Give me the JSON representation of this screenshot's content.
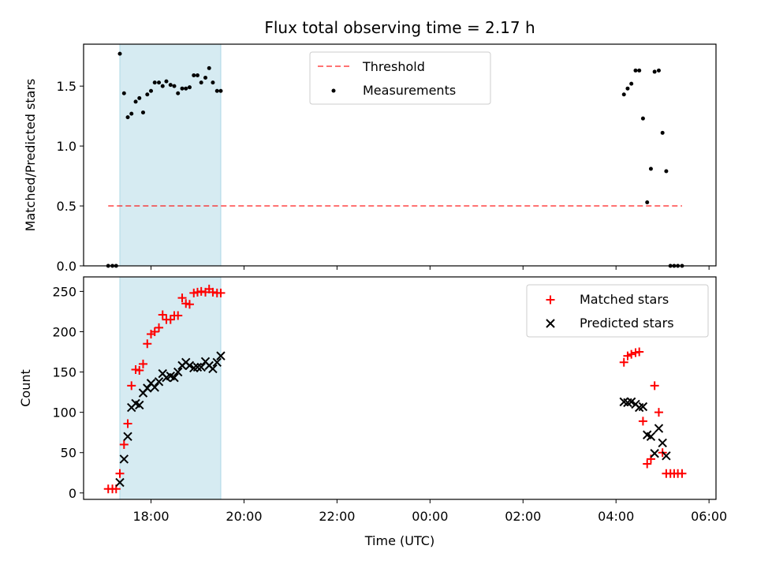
{
  "title": "Flux total observing time = 2.17 h",
  "colors": {
    "shade": "#add8e6",
    "threshold": "#ff0000",
    "measurements": "#000000",
    "matched": "#ff0000",
    "predicted": "#000000"
  },
  "chart_data": [
    {
      "type": "scatter",
      "ylabel": "Matched/Predicted stars",
      "ylim": [
        0,
        1.85
      ],
      "yticks": [
        "0.0",
        "0.5",
        "1.0",
        "1.5"
      ],
      "ytick_values": [
        0,
        0.5,
        1.0,
        1.5
      ],
      "xlim": [
        16.55,
        30.15
      ],
      "shaded_interval": [
        17.33,
        19.5
      ],
      "legend": {
        "placement": "top-center",
        "entries": [
          "Threshold",
          "Measurements"
        ]
      },
      "threshold": {
        "name": "Threshold",
        "y": 0.5,
        "x": [
          17.08,
          29.42
        ]
      },
      "series": [
        {
          "name": "Measurements",
          "x": [
            17.08,
            17.17,
            17.25,
            17.33,
            17.42,
            17.5,
            17.58,
            17.67,
            17.75,
            17.83,
            17.92,
            18.0,
            18.08,
            18.17,
            18.25,
            18.33,
            18.42,
            18.5,
            18.58,
            18.67,
            18.75,
            18.83,
            18.92,
            19.0,
            19.08,
            19.17,
            19.25,
            19.33,
            19.42,
            19.5,
            28.17,
            28.25,
            28.33,
            28.42,
            28.5,
            28.58,
            28.67,
            28.75,
            28.83,
            28.92,
            29.0,
            29.08,
            29.17,
            29.25,
            29.33,
            29.42
          ],
          "y": [
            0,
            0,
            0,
            1.77,
            1.44,
            1.24,
            1.27,
            1.37,
            1.4,
            1.28,
            1.43,
            1.46,
            1.53,
            1.53,
            1.5,
            1.54,
            1.51,
            1.5,
            1.44,
            1.48,
            1.48,
            1.49,
            1.59,
            1.59,
            1.53,
            1.57,
            1.65,
            1.53,
            1.46,
            1.46,
            1.43,
            1.48,
            1.52,
            1.63,
            1.63,
            1.23,
            0.53,
            0.81,
            1.62,
            1.63,
            1.11,
            0.79,
            0,
            0,
            0,
            0
          ]
        }
      ]
    },
    {
      "type": "scatter",
      "xlabel": "Time (UTC)",
      "ylabel": "Count",
      "ylim": [
        -8,
        268
      ],
      "yticks": [
        "0",
        "50",
        "100",
        "150",
        "200",
        "250"
      ],
      "ytick_values": [
        0,
        50,
        100,
        150,
        200,
        250
      ],
      "xlim": [
        16.55,
        30.15
      ],
      "xticks": [
        "18:00",
        "20:00",
        "22:00",
        "00:00",
        "02:00",
        "04:00",
        "06:00"
      ],
      "xtick_values": [
        18,
        20,
        22,
        24,
        26,
        28,
        30
      ],
      "shaded_interval": [
        17.33,
        19.5
      ],
      "legend": {
        "placement": "top-right",
        "entries": [
          "Matched stars",
          "Predicted stars"
        ]
      },
      "series": [
        {
          "name": "Matched stars",
          "marker": "+",
          "x": [
            17.08,
            17.17,
            17.25,
            17.33,
            17.42,
            17.5,
            17.58,
            17.67,
            17.75,
            17.83,
            17.92,
            18.0,
            18.08,
            18.17,
            18.25,
            18.33,
            18.42,
            18.5,
            18.58,
            18.67,
            18.75,
            18.83,
            18.92,
            19.0,
            19.08,
            19.17,
            19.25,
            19.33,
            19.42,
            19.5,
            28.17,
            28.25,
            28.33,
            28.42,
            28.5,
            28.58,
            28.67,
            28.75,
            28.83,
            28.92,
            29.0,
            29.08,
            29.17,
            29.25,
            29.33,
            29.42
          ],
          "y": [
            5,
            5,
            5,
            24,
            60,
            86,
            133,
            153,
            152,
            160,
            185,
            197,
            200,
            205,
            221,
            215,
            215,
            220,
            220,
            242,
            235,
            234,
            248,
            249,
            250,
            249,
            253,
            249,
            248,
            248,
            162,
            170,
            172,
            174,
            175,
            89,
            36,
            42,
            133,
            100,
            50,
            24,
            24,
            24,
            24,
            24
          ]
        },
        {
          "name": "Predicted stars",
          "marker": "x",
          "x": [
            17.33,
            17.42,
            17.5,
            17.58,
            17.67,
            17.75,
            17.83,
            17.92,
            18.0,
            18.08,
            18.17,
            18.25,
            18.33,
            18.42,
            18.5,
            18.58,
            18.67,
            18.75,
            18.83,
            18.92,
            19.0,
            19.08,
            19.17,
            19.25,
            19.33,
            19.42,
            19.5,
            28.17,
            28.25,
            28.33,
            28.42,
            28.5,
            28.58,
            28.67,
            28.75,
            28.83,
            28.92,
            29.0,
            29.08
          ],
          "y": [
            13,
            42,
            70,
            106,
            111,
            109,
            124,
            130,
            136,
            131,
            138,
            148,
            143,
            145,
            143,
            150,
            158,
            162,
            158,
            155,
            156,
            156,
            163,
            158,
            154,
            162,
            170,
            113,
            112,
            113,
            110,
            106,
            107,
            72,
            70,
            49,
            80,
            62,
            46
          ]
        }
      ]
    }
  ]
}
